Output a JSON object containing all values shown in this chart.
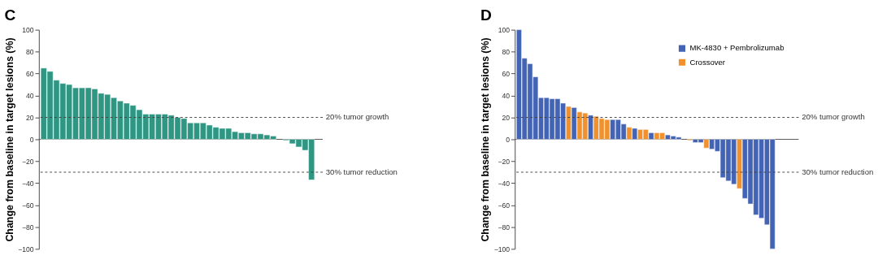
{
  "chart_data": [
    {
      "type": "bar",
      "title": "C",
      "ylabel": "Change from baseline in target lesions (%)",
      "categories": [
        null,
        null,
        null,
        null,
        null,
        null,
        null,
        null,
        null,
        null,
        null,
        null,
        null,
        null,
        null,
        null,
        null,
        null,
        null,
        null,
        null,
        null,
        null,
        null,
        null,
        null,
        null,
        null,
        null,
        null,
        null,
        null,
        null,
        null,
        null,
        null,
        null,
        null,
        null,
        null,
        null,
        null,
        null,
        null
      ],
      "series": [
        {
          "color": "#2e9682",
          "values": [
            65,
            62,
            54,
            51,
            50,
            47,
            47,
            47,
            46,
            42,
            41,
            38,
            35,
            33,
            31,
            27,
            23,
            23,
            23,
            23,
            22,
            20,
            19,
            15,
            15,
            15,
            13,
            11,
            10,
            10,
            7,
            6,
            6,
            5,
            5,
            4,
            3,
            null,
            -1,
            -4,
            -7,
            -10,
            -37,
            null
          ]
        }
      ],
      "ylim": [
        -100,
        100
      ],
      "yticks": [
        -100,
        -80,
        -60,
        -40,
        -20,
        0,
        20,
        40,
        60,
        80,
        100
      ],
      "grid": false,
      "ref_lines": [
        {
          "axis": "y",
          "value": 20,
          "label": "20% tumor growth",
          "line_style": "dashed"
        },
        {
          "axis": "y",
          "value": -30,
          "label": "30% tumor reduction",
          "line_style": "dashed"
        }
      ]
    },
    {
      "type": "bar",
      "title": "D",
      "ylabel": "Change from baseline in target lesions (%)",
      "categories": [
        null,
        null,
        null,
        null,
        null,
        null,
        null,
        null,
        null,
        null,
        null,
        null,
        null,
        null,
        null,
        null,
        null,
        null,
        null,
        null,
        null,
        null,
        null,
        null,
        null,
        null,
        null,
        null,
        null,
        null,
        null,
        null,
        null,
        null,
        null,
        null,
        null,
        null,
        null,
        null,
        null,
        null,
        null,
        null,
        null,
        null,
        null,
        null,
        null,
        null,
        null
      ],
      "series": [
        {
          "name": "MK-4830 + Pembrolizumab",
          "color": "#4363b5",
          "values": [
            100,
            74,
            69,
            57,
            38,
            38,
            37,
            37,
            33,
            null,
            29,
            null,
            null,
            22,
            null,
            null,
            null,
            18,
            18,
            14,
            null,
            10,
            null,
            null,
            6,
            null,
            null,
            4,
            3,
            2,
            null,
            null,
            -3,
            -3,
            null,
            -9,
            -11,
            -35,
            -38,
            -41,
            null,
            -54,
            -59,
            -69,
            -72,
            -78,
            -100,
            null,
            null,
            null,
            null
          ]
        },
        {
          "name": "Crossover",
          "color": "#f0912d",
          "values": [
            null,
            null,
            null,
            null,
            null,
            null,
            null,
            null,
            null,
            30,
            null,
            25,
            24,
            null,
            21,
            19,
            18,
            null,
            null,
            null,
            11,
            null,
            9,
            9,
            null,
            6,
            6,
            null,
            null,
            null,
            null,
            -1,
            null,
            null,
            -8,
            null,
            null,
            null,
            null,
            null,
            -45,
            null,
            null,
            null,
            null,
            null,
            null,
            null,
            null,
            null,
            null
          ]
        }
      ],
      "ylim": [
        -100,
        100
      ],
      "yticks": [
        -100,
        -80,
        -60,
        -40,
        -20,
        0,
        20,
        40,
        60,
        80,
        100
      ],
      "grid": false,
      "legend": "top right",
      "ref_lines": [
        {
          "axis": "y",
          "value": 20,
          "label": "20% tumor growth",
          "line_style": "dashed"
        },
        {
          "axis": "y",
          "value": -30,
          "label": "30% tumor reduction",
          "line_style": "dashed"
        }
      ]
    }
  ]
}
